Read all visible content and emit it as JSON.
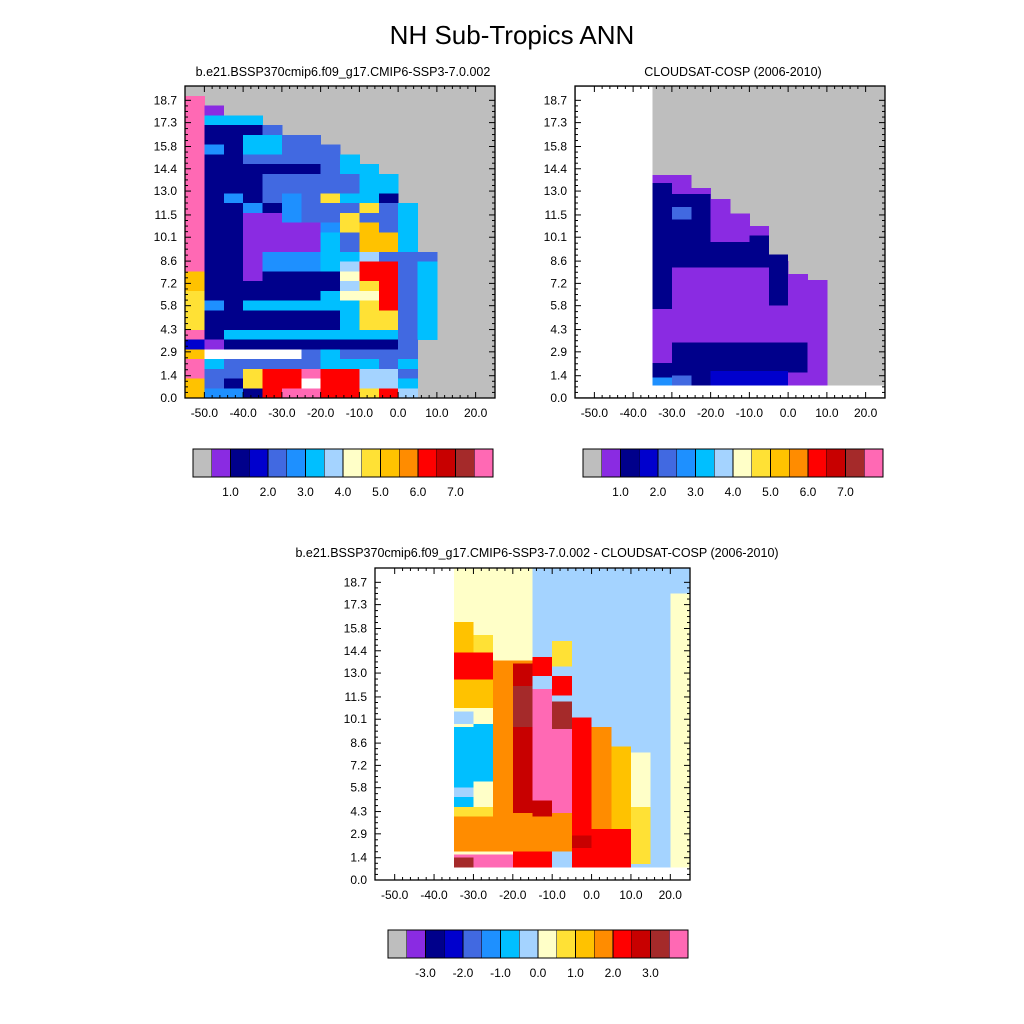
{
  "figure": {
    "title": "NH Sub-Tropics ANN"
  },
  "colors": {
    "raw_palette": [
      "#bebebe",
      "#8a2be2",
      "#00008b",
      "#0000cd",
      "#4169e1",
      "#1e90ff",
      "#00bfff",
      "#a4d3ff",
      "#ffffc8",
      "#ffe135",
      "#ffc200",
      "#ff8c00",
      "#ff0000",
      "#c80000",
      "#a52a2a",
      "#ff69b4"
    ],
    "diff_palette": [
      "#bebebe",
      "#8a2be2",
      "#00008b",
      "#0000cd",
      "#4169e1",
      "#1e90ff",
      "#00bfff",
      "#a4d3ff",
      "#ffffc8",
      "#ffe135",
      "#ffc200",
      "#ff8c00",
      "#ff0000",
      "#c80000",
      "#a52a2a",
      "#ff69b4"
    ],
    "missing": "#bebebe"
  },
  "chart_data": [
    {
      "type": "heatmap",
      "title": "b.e21.BSSP370cmip6.f09_g17.CMIP6-SSP3-7.0.002",
      "x_ticks": [
        "-50.0",
        "-40.0",
        "-30.0",
        "-20.0",
        "-10.0",
        "0.0",
        "10.0",
        "20.0"
      ],
      "y_ticks": [
        "0.0",
        "1.4",
        "2.9",
        "4.3",
        "5.8",
        "7.2",
        "8.6",
        "10.1",
        "11.5",
        "13.0",
        "14.4",
        "15.8",
        "17.3",
        "18.7"
      ],
      "colorbar_labels": [
        "1.0",
        "2.0",
        "3.0",
        "4.0",
        "5.0",
        "6.0",
        "7.0"
      ],
      "x_range": [
        -55,
        25
      ],
      "y_range": [
        0,
        19.6
      ],
      "x_edges": [
        -50,
        -45,
        -40,
        -35,
        -30,
        -25,
        -20,
        -15,
        -10,
        -5,
        0,
        5,
        10,
        15,
        20
      ],
      "y_edges": [
        0,
        1.4,
        2.9,
        4.3,
        5.8,
        7.2,
        8.6,
        10.1,
        11.5,
        13.0,
        14.4,
        15.8,
        17.3,
        18.7
      ],
      "grid_rows_top_to_bottom": [
        "GGGGGGGGGGGGGG",
        "PGGGGGGGGGGGGG",
        "PVGGGGGGGGGGGG",
        "PCCCGGGGGGGGGG",
        "PDDDBGGGGGGGGG",
        "PDDCCBBGGGGGGG",
        "PEDCCBBBGGGGGG",
        "PDDBBBBBCGGGGG",
        "PDDDDDDBCCGGGG",
        "PDDDBBBBBCCGGG",
        "PDDDBBBBBCCGGG",
        "PDEDBEBYCCDGGG",
        "PDDEDEBBBYBCGG",
        "PDDVVEBBYBBCGG",
        "PDDVVVVEYOBCGG",
        "PDDVVVVCBOOCGG",
        "PDDVVVVCBOOCGG",
        "PDDVEEECCLBBBG",
        "PDDVEEECLRRBCG",
        "ODDVDDDDSRRBCG",
        "ODDDDDDDLYRBCG",
        "YDDDDDDCSSRBCG",
        "YEDCCCCCCYRBCG",
        "YDDDDDDDCYYBCG",
        "YDDDDDDDCYYBCG",
        "PDCCCCCCCCCBCG",
        "KVDDDDDDDDDBGG",
        "OWWWWWBCBBBBGG",
        "PCBBBBBCCCBCGG",
        "PBBYRRPRRLLBGG",
        "OBDYRRWRRLLCGG",
        "OEEDRPPRRYRLGG"
      ]
    },
    {
      "type": "heatmap",
      "title": "CLOUDSAT-COSP (2006-2010)",
      "x_ticks": [
        "-50.0",
        "-40.0",
        "-30.0",
        "-20.0",
        "-10.0",
        "0.0",
        "10.0",
        "20.0"
      ],
      "y_ticks": [
        "0.0",
        "1.4",
        "2.9",
        "4.3",
        "5.8",
        "7.2",
        "8.6",
        "10.1",
        "11.5",
        "13.0",
        "14.4",
        "15.8",
        "17.3",
        "18.7"
      ],
      "colorbar_labels": [
        "1.0",
        "2.0",
        "3.0",
        "4.0",
        "5.0",
        "6.0",
        "7.0"
      ],
      "x_range": [
        -55,
        25
      ],
      "y_range": [
        0,
        19.6
      ]
    },
    {
      "type": "heatmap",
      "title": "b.e21.BSSP370cmip6.f09_g17.CMIP6-SSP3-7.0.002 - CLOUDSAT-COSP (2006-2010)",
      "x_ticks": [
        "-50.0",
        "-40.0",
        "-30.0",
        "-20.0",
        "-10.0",
        "0.0",
        "10.0",
        "20.0"
      ],
      "y_ticks": [
        "0.0",
        "1.4",
        "2.9",
        "4.3",
        "5.8",
        "7.2",
        "8.6",
        "10.1",
        "11.5",
        "13.0",
        "14.4",
        "15.8",
        "17.3",
        "18.7"
      ],
      "colorbar_labels": [
        "-3.0",
        "-2.0",
        "-1.0",
        "0.0",
        "1.0",
        "2.0",
        "3.0"
      ],
      "x_range": [
        -55,
        25
      ],
      "y_range": [
        0,
        19.6
      ]
    }
  ]
}
